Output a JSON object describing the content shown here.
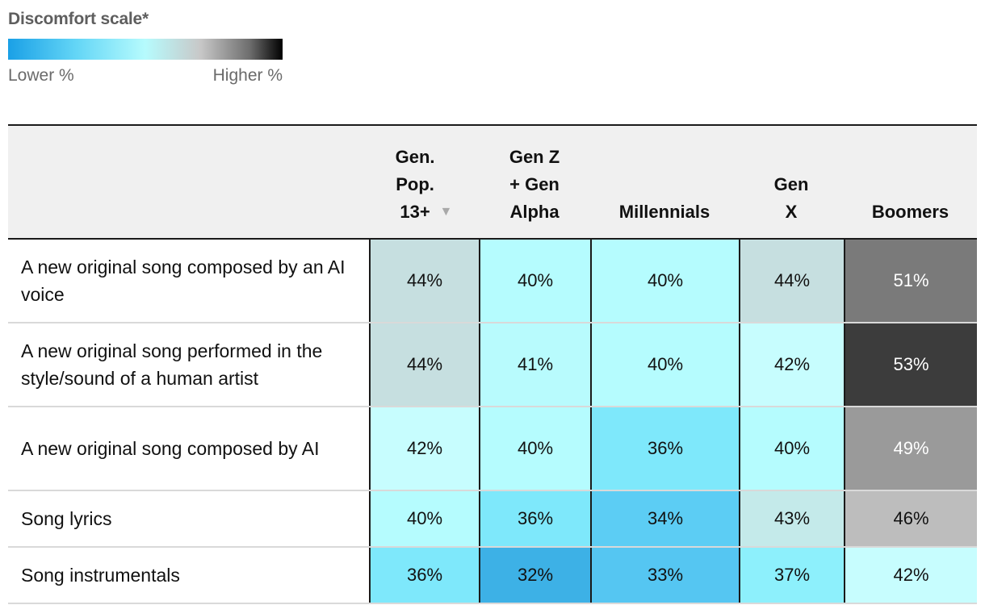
{
  "legend": {
    "title": "Discomfort scale*",
    "low_label": "Lower %",
    "high_label": "Higher %"
  },
  "chart_data": {
    "type": "heatmap",
    "columns": [
      "Gen.\nPop.\n13+",
      "Gen Z\n+ Gen\nAlpha",
      "Millennials",
      "Gen\nX",
      "Boomers"
    ],
    "sorted_column_index": 0,
    "sort_icon": "sort-descending-icon",
    "rows": [
      {
        "label": "A new original song composed by an AI voice",
        "values": [
          44,
          40,
          40,
          44,
          51
        ]
      },
      {
        "label": "A new original song performed in the style/sound of a human artist",
        "values": [
          44,
          41,
          40,
          42,
          53
        ]
      },
      {
        "label": "A new original song composed by AI",
        "values": [
          42,
          40,
          36,
          40,
          49
        ]
      },
      {
        "label": "Song lyrics",
        "values": [
          40,
          36,
          34,
          43,
          46
        ]
      },
      {
        "label": "Song instrumentals",
        "values": [
          36,
          32,
          33,
          37,
          42
        ]
      }
    ],
    "value_suffix": "%",
    "color_scale": {
      "32": "#3db1e6",
      "33": "#55c6f2",
      "34": "#5ccdf4",
      "36": "#7ee8fb",
      "37": "#8df0fc",
      "40": "#b5fcfe",
      "41": "#b8fbfd",
      "42": "#c7fdfe",
      "43": "#c4eaea",
      "44": "#c6dfe0",
      "46": "#bdbdbd",
      "49": "#9a9a9a",
      "51": "#7a7a7a",
      "53": "#3c3c3c"
    },
    "dark_text_color": "#111111",
    "light_text_color": "#ffffff"
  }
}
